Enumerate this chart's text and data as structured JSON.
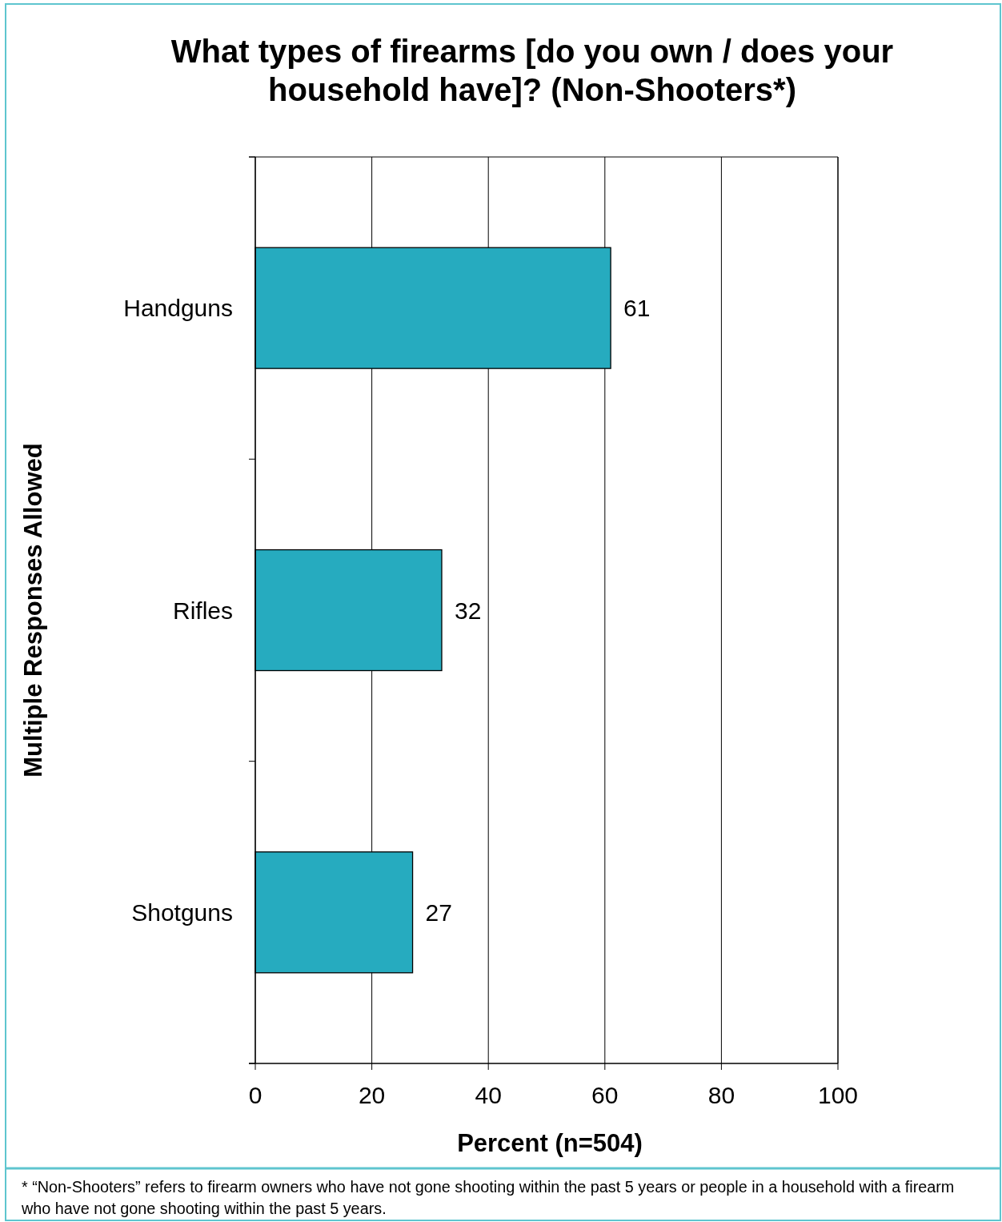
{
  "chart_data": {
    "type": "bar",
    "orientation": "horizontal",
    "title": "What types of firearms [do you own / does your household have]? (Non-Shooters*)",
    "xlabel": "Percent (n=504)",
    "ylabel": "Multiple Responses Allowed",
    "categories": [
      "Handguns",
      "Rifles",
      "Shotguns"
    ],
    "values": [
      61,
      32,
      27
    ],
    "color": "#26abbf",
    "xlim": [
      0,
      100
    ],
    "xticks": [
      0,
      20,
      40,
      60,
      80,
      100
    ],
    "grid": "x",
    "data_labels": true,
    "annotations": [
      "* “Non-Shooters” refers to firearm owners who have not gone shooting within the past 5 years or people in a household with a firearm who have not gone shooting within the past 5 years."
    ]
  }
}
